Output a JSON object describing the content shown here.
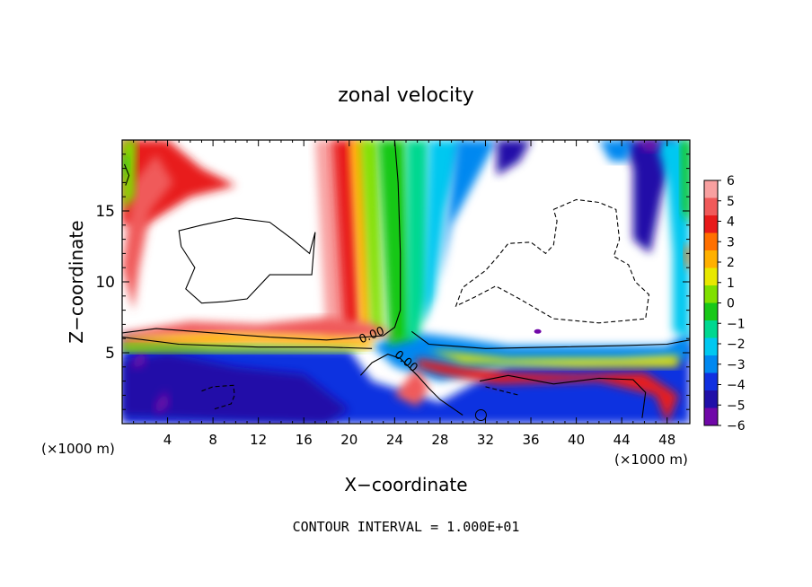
{
  "chart_data": {
    "type": "heatmap",
    "title": "zonal velocity",
    "xlabel": "X−coordinate",
    "ylabel": "Z−coordinate",
    "x_unit": "(×1000 m)",
    "footer": "CONTOUR INTERVAL = 1.000E+01",
    "xlim": [
      0,
      50
    ],
    "ylim": [
      0,
      20
    ],
    "x_ticks": [
      4,
      8,
      12,
      16,
      20,
      24,
      28,
      32,
      36,
      40,
      44,
      48
    ],
    "x_tick_labels": [
      "4",
      "8",
      "12",
      "16",
      "20",
      "24",
      "28",
      "32",
      "36",
      "40",
      "44",
      "48"
    ],
    "y_ticks": [
      5,
      10,
      15
    ],
    "y_tick_labels": [
      "5",
      "10",
      "15"
    ],
    "contour_labels": [
      "0.00",
      "0.00"
    ],
    "colorbar": {
      "levels": [
        6,
        5,
        4,
        3,
        2,
        1,
        0,
        -1,
        -2,
        -3,
        -4,
        -5,
        -6
      ],
      "labels": [
        "6",
        "5",
        "4",
        "3",
        "2",
        "1",
        "0",
        "−1",
        "−2",
        "−3",
        "−4",
        "−5",
        "−6"
      ],
      "colors": [
        "#f8a0a0",
        "#f05a5a",
        "#e81a1a",
        "#ff7000",
        "#ffb000",
        "#e8e800",
        "#80e000",
        "#18c818",
        "#00d890",
        "#00c8f0",
        "#0088f0",
        "#1030e0",
        "#2010a8",
        "#7008a8"
      ]
    }
  }
}
